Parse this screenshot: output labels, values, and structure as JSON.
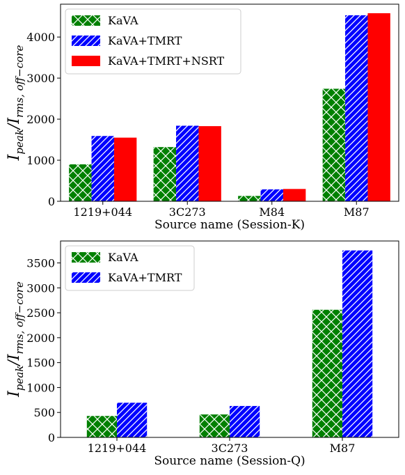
{
  "chart_data": [
    {
      "type": "bar",
      "categories": [
        "1219+044",
        "3C273",
        "M84",
        "M87"
      ],
      "series": [
        {
          "name": "KaVA",
          "values": [
            900,
            1320,
            130,
            2740
          ],
          "color": "#008000",
          "hatch": "crosshatch"
        },
        {
          "name": "KaVA+TMRT",
          "values": [
            1590,
            1840,
            290,
            4530
          ],
          "color": "#0000ff",
          "hatch": "diagonal"
        },
        {
          "name": "KaVA+TMRT+NSRT",
          "values": [
            1550,
            1830,
            300,
            4580
          ],
          "color": "#ff0000",
          "hatch": "none"
        }
      ],
      "xlabel": "Source name (Session-K)",
      "ylabel": "I_peak/I_rms, off−core",
      "ylim": [
        0,
        4800
      ],
      "yticks": [
        0,
        1000,
        2000,
        3000,
        4000
      ],
      "grid": false,
      "legend": "top-left"
    },
    {
      "type": "bar",
      "categories": [
        "1219+044",
        "3C273",
        "M87"
      ],
      "series": [
        {
          "name": "KaVA",
          "values": [
            430,
            460,
            2560
          ],
          "color": "#008000",
          "hatch": "crosshatch"
        },
        {
          "name": "KaVA+TMRT",
          "values": [
            695,
            630,
            3750
          ],
          "color": "#0000ff",
          "hatch": "diagonal"
        }
      ],
      "xlabel": "Source name (Session-Q)",
      "ylabel": "I_peak/I_rms, off−core",
      "ylim": [
        0,
        3940
      ],
      "yticks": [
        0,
        500,
        1000,
        1500,
        2000,
        2500,
        3000,
        3500
      ],
      "grid": false,
      "legend": "top-left"
    }
  ]
}
